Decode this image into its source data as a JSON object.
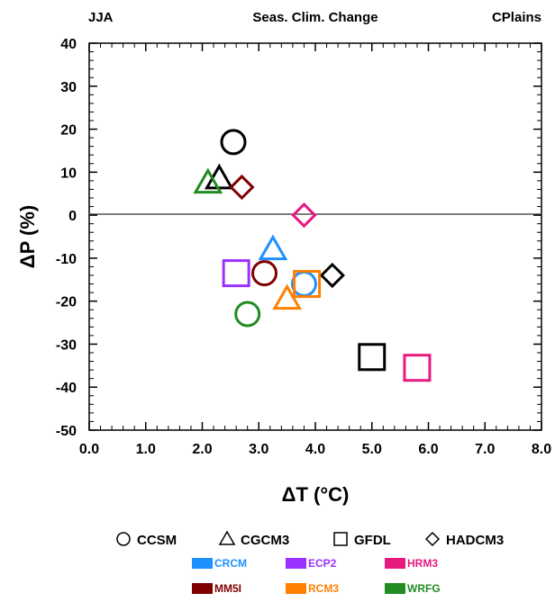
{
  "chart_data": {
    "type": "scatter",
    "title": "Seas. Clim. Change",
    "left_label": "JJA",
    "right_label": "CPlains",
    "xlabel": "ΔT (°C)",
    "ylabel": "ΔP (%)",
    "xlim": [
      0,
      8
    ],
    "ylim": [
      -50,
      40
    ],
    "xticks": [
      "0.0",
      "1.0",
      "2.0",
      "3.0",
      "4.0",
      "5.0",
      "6.0",
      "7.0",
      "8.0"
    ],
    "yticks": [
      "-50",
      "-40",
      "-30",
      "-20",
      "-10",
      "0",
      "10",
      "20",
      "30",
      "40"
    ],
    "zero_line": true,
    "grid": false,
    "shape_legend": [
      {
        "label": "CCSM",
        "shape": "circle"
      },
      {
        "label": "CGCM3",
        "shape": "triangle"
      },
      {
        "label": "GFDL",
        "shape": "square"
      },
      {
        "label": "HADCM3",
        "shape": "diamond"
      }
    ],
    "color_legend": [
      {
        "label": "CRCM",
        "color": "#1e90ff"
      },
      {
        "label": "ECP2",
        "color": "#9b30ff"
      },
      {
        "label": "HRM3",
        "color": "#e6197f"
      },
      {
        "label": "MM5I",
        "color": "#800000"
      },
      {
        "label": "RCM3",
        "color": "#ff7f00"
      },
      {
        "label": "WRFG",
        "color": "#228b22"
      }
    ],
    "points": [
      {
        "x": 2.55,
        "y": 17,
        "shape": "circle",
        "color": "#000000"
      },
      {
        "x": 2.3,
        "y": 8.5,
        "shape": "triangle",
        "color": "#000000"
      },
      {
        "x": 2.1,
        "y": 7.5,
        "shape": "triangle",
        "color": "#228b22"
      },
      {
        "x": 2.7,
        "y": 6.5,
        "shape": "diamond",
        "color": "#800000"
      },
      {
        "x": 3.8,
        "y": 0,
        "shape": "diamond",
        "color": "#e6197f"
      },
      {
        "x": 3.25,
        "y": -8,
        "shape": "triangle",
        "color": "#1e90ff"
      },
      {
        "x": 2.6,
        "y": -13.5,
        "shape": "square",
        "color": "#9b30ff"
      },
      {
        "x": 3.1,
        "y": -13.5,
        "shape": "circle",
        "color": "#800000"
      },
      {
        "x": 4.3,
        "y": -14,
        "shape": "diamond",
        "color": "#000000"
      },
      {
        "x": 3.8,
        "y": -16,
        "shape": "circle",
        "color": "#1e90ff"
      },
      {
        "x": 3.85,
        "y": -16,
        "shape": "square",
        "color": "#ff7f00"
      },
      {
        "x": 3.5,
        "y": -19.5,
        "shape": "triangle",
        "color": "#ff7f00"
      },
      {
        "x": 2.8,
        "y": -23,
        "shape": "circle",
        "color": "#228b22"
      },
      {
        "x": 5.0,
        "y": -33,
        "shape": "square",
        "color": "#000000"
      },
      {
        "x": 5.8,
        "y": -35.5,
        "shape": "square",
        "color": "#e6197f"
      }
    ]
  }
}
